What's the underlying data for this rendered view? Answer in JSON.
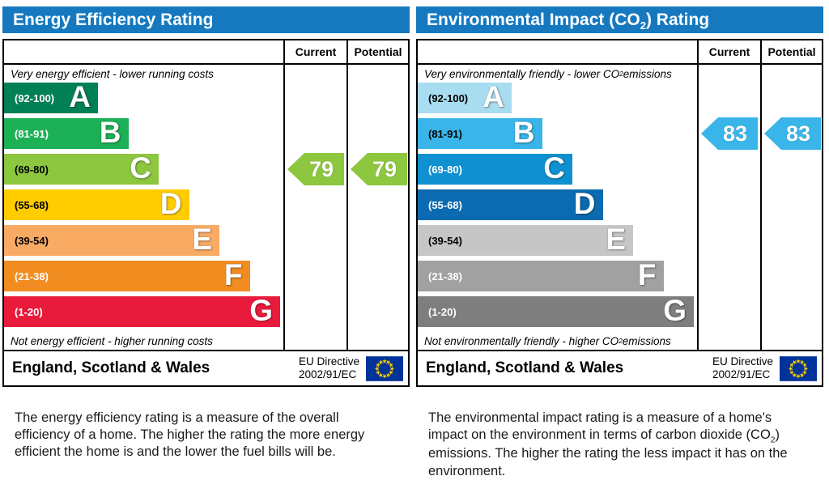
{
  "chart_data": [
    {
      "type": "bar",
      "title": "Energy Efficiency Rating",
      "categories": [
        "A (92-100)",
        "B (81-91)",
        "C (69-80)",
        "D (55-68)",
        "E (39-54)",
        "F (21-38)",
        "G (1-20)"
      ],
      "series": [
        {
          "name": "Current",
          "values": [
            79
          ],
          "band": "C"
        },
        {
          "name": "Potential",
          "values": [
            79
          ],
          "band": "C"
        }
      ],
      "ylim": [
        1,
        100
      ],
      "legend_position": "top-right",
      "region": "England, Scotland & Wales"
    },
    {
      "type": "bar",
      "title": "Environmental Impact (CO2) Rating",
      "categories": [
        "A (92-100)",
        "B (81-91)",
        "C (69-80)",
        "D (55-68)",
        "E (39-54)",
        "F (21-38)",
        "G (1-20)"
      ],
      "series": [
        {
          "name": "Current",
          "values": [
            83
          ],
          "band": "B"
        },
        {
          "name": "Potential",
          "values": [
            83
          ],
          "band": "B"
        }
      ],
      "ylim": [
        1,
        100
      ],
      "legend_position": "top-right",
      "region": "England, Scotland & Wales"
    }
  ],
  "header_color": "#1679c0",
  "eu_flag": {
    "background": "#003399",
    "star_color": "#ffcc00"
  },
  "charts": [
    {
      "title_parts": {
        "pre": "Energy Efficiency Rating",
        "sub": "",
        "post": ""
      },
      "columns": {
        "current": "Current",
        "potential": "Potential"
      },
      "top_caption_parts": {
        "pre": "Very energy efficient - lower running costs",
        "sub": "",
        "post": ""
      },
      "bottom_caption_parts": {
        "pre": "Not energy efficient - higher running costs",
        "sub": "",
        "post": ""
      },
      "bands": [
        {
          "range": "(92-100)",
          "letter": "A",
          "color": "#008054",
          "text_color": "#ffffff"
        },
        {
          "range": "(81-91)",
          "letter": "B",
          "color": "#1db157",
          "text_color": "#ffffff"
        },
        {
          "range": "(69-80)",
          "letter": "C",
          "color": "#8dc63f",
          "text_color": "#000000"
        },
        {
          "range": "(55-68)",
          "letter": "D",
          "color": "#ffcc00",
          "text_color": "#000000"
        },
        {
          "range": "(39-54)",
          "letter": "E",
          "color": "#f9ab64",
          "text_color": "#000000"
        },
        {
          "range": "(21-38)",
          "letter": "F",
          "color": "#f18c21",
          "text_color": "#ffffff"
        },
        {
          "range": "(1-20)",
          "letter": "G",
          "color": "#e91b3c",
          "text_color": "#ffffff"
        }
      ],
      "current": {
        "value": "79",
        "band": "C",
        "color": "#8dc63f"
      },
      "potential": {
        "value": "79",
        "band": "C",
        "color": "#8dc63f"
      },
      "footer": {
        "region": "England, Scotland & Wales",
        "directive_line1": "EU Directive",
        "directive_line2": "2002/91/EC"
      },
      "description_parts": {
        "pre": "The energy efficiency rating is a measure of the overall efficiency of a home. The higher the rating the more energy efficient the home is and the lower the fuel bills will be.",
        "sub": "",
        "post": ""
      }
    },
    {
      "title_parts": {
        "pre": "Environmental Impact (CO",
        "sub": "2",
        "post": ") Rating"
      },
      "columns": {
        "current": "Current",
        "potential": "Potential"
      },
      "top_caption_parts": {
        "pre": "Very environmentally friendly - lower CO",
        "sub": "2",
        "post": " emissions"
      },
      "bottom_caption_parts": {
        "pre": "Not environmentally friendly - higher CO",
        "sub": "2",
        "post": " emissions"
      },
      "bands": [
        {
          "range": "(92-100)",
          "letter": "A",
          "color": "#a8dcf0",
          "text_color": "#000000"
        },
        {
          "range": "(81-91)",
          "letter": "B",
          "color": "#39b5e9",
          "text_color": "#000000"
        },
        {
          "range": "(69-80)",
          "letter": "C",
          "color": "#0f90d0",
          "text_color": "#ffffff"
        },
        {
          "range": "(55-68)",
          "letter": "D",
          "color": "#0c6bb0",
          "text_color": "#ffffff"
        },
        {
          "range": "(39-54)",
          "letter": "E",
          "color": "#c6c6c6",
          "text_color": "#000000"
        },
        {
          "range": "(21-38)",
          "letter": "F",
          "color": "#a1a1a1",
          "text_color": "#ffffff"
        },
        {
          "range": "(1-20)",
          "letter": "G",
          "color": "#7e7e7e",
          "text_color": "#ffffff"
        }
      ],
      "current": {
        "value": "83",
        "band": "B",
        "color": "#39b5e9"
      },
      "potential": {
        "value": "83",
        "band": "B",
        "color": "#39b5e9"
      },
      "footer": {
        "region": "England, Scotland & Wales",
        "directive_line1": "EU Directive",
        "directive_line2": "2002/91/EC"
      },
      "description_parts": {
        "pre": "The environmental impact rating is a measure of a home's impact on the environment in terms of carbon dioxide (CO",
        "sub": "2",
        "post": ") emissions. The higher the rating the less impact it has on the environment."
      }
    }
  ]
}
